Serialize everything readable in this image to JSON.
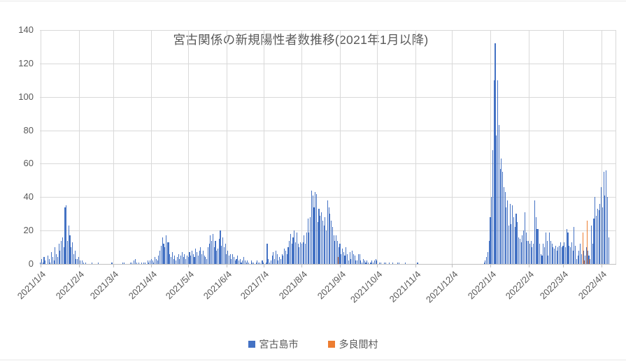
{
  "title": "宮古関係の新規陽性者数推移(2021年1月以降)",
  "legend": [
    {
      "label": "宮古島市",
      "color": "#4472C4"
    },
    {
      "label": "多良間村",
      "color": "#ED7D31"
    }
  ],
  "colors": {
    "miyakojima_blue": "#4472C4",
    "tarama_orange": "#ED7D31",
    "text_gray": "#595959",
    "gridline": "#D9D9D9",
    "axis_line": "#BFBFBF"
  },
  "y_axis": {
    "min": 0,
    "max": 140,
    "ticks": [
      0,
      20,
      40,
      60,
      80,
      100,
      120,
      140
    ]
  },
  "x_axis": {
    "ticks": [
      {
        "label": "2021/1/4",
        "day_index": 0
      },
      {
        "label": "2021/2/4",
        "day_index": 31
      },
      {
        "label": "2021/3/4",
        "day_index": 59
      },
      {
        "label": "2021/4/4",
        "day_index": 90
      },
      {
        "label": "2021/5/4",
        "day_index": 120
      },
      {
        "label": "2021/6/4",
        "day_index": 151
      },
      {
        "label": "2021/7/4",
        "day_index": 181
      },
      {
        "label": "2021/8/4",
        "day_index": 212
      },
      {
        "label": "2021/9/4",
        "day_index": 243
      },
      {
        "label": "2021/10/4",
        "day_index": 273
      },
      {
        "label": "2021/11/4",
        "day_index": 304
      },
      {
        "label": "2021/12/4",
        "day_index": 334
      },
      {
        "label": "2022/1/4",
        "day_index": 365
      },
      {
        "label": "2022/2/4",
        "day_index": 396
      },
      {
        "label": "2022/3/4",
        "day_index": 424
      },
      {
        "label": "2022/4/4",
        "day_index": 455
      }
    ]
  },
  "chart_data": {
    "type": "bar",
    "title": "宮古関係の新規陽性者数推移(2021年1月以降)",
    "x_start_date": "2021/1/4",
    "x_end_date": "2022/4/10",
    "x_frequency": "daily",
    "ylim": [
      0,
      140
    ],
    "grid": true,
    "legend_position": "bottom",
    "series": [
      {
        "name": "宮古島市",
        "color": "#4472C4",
        "values": [
          1,
          3,
          1,
          4,
          2,
          0,
          5,
          3,
          1,
          7,
          4,
          2,
          10,
          6,
          4,
          12,
          8,
          14,
          16,
          10,
          34,
          35,
          14,
          23,
          17,
          10,
          13,
          6,
          8,
          3,
          3,
          4,
          2,
          0,
          2,
          1,
          0,
          1,
          0,
          0,
          0,
          0,
          1,
          0,
          0,
          0,
          0,
          1,
          0,
          0,
          0,
          0,
          0,
          0,
          0,
          0,
          0,
          0,
          1,
          0,
          0,
          0,
          0,
          0,
          0,
          0,
          0,
          1,
          1,
          0,
          0,
          0,
          0,
          1,
          1,
          0,
          2,
          3,
          1,
          0,
          1,
          0,
          1,
          0,
          1,
          1,
          0,
          2,
          1,
          2,
          3,
          2,
          1,
          4,
          3,
          2,
          5,
          8,
          11,
          16,
          12,
          10,
          17,
          13,
          13,
          6,
          4,
          7,
          3,
          5,
          2,
          4,
          6,
          3,
          5,
          7,
          4,
          6,
          3,
          5,
          4,
          7,
          5,
          8,
          6,
          4,
          9,
          7,
          5,
          8,
          10,
          6,
          8,
          5,
          4,
          3,
          10,
          12,
          17,
          14,
          18,
          10,
          14,
          8,
          9,
          15,
          20,
          11,
          16,
          10,
          12,
          6,
          8,
          5,
          6,
          3,
          6,
          4,
          2,
          3,
          5,
          2,
          3,
          1,
          2,
          4,
          2,
          1,
          2,
          1,
          0,
          2,
          1,
          1,
          0,
          1,
          2,
          1,
          1,
          0,
          2,
          1,
          0,
          1,
          12,
          3,
          1,
          2,
          5,
          7,
          3,
          8,
          6,
          2,
          4,
          3,
          6,
          5,
          9,
          8,
          6,
          10,
          14,
          18,
          12,
          16,
          20,
          13,
          19,
          12,
          10,
          13,
          12,
          13,
          17,
          12,
          19,
          27,
          19,
          28,
          44,
          41,
          34,
          43,
          42,
          25,
          33,
          29,
          31,
          26,
          23,
          28,
          20,
          38,
          34,
          30,
          26,
          22,
          17,
          14,
          17,
          14,
          10,
          12,
          6,
          9,
          7,
          5,
          10,
          6,
          2,
          7,
          3,
          8,
          6,
          5,
          2,
          2,
          6,
          6,
          2,
          1,
          3,
          2,
          1,
          2,
          1,
          0,
          1,
          2,
          1,
          2,
          3,
          2,
          0,
          1,
          1,
          0,
          0,
          1,
          1,
          0,
          0,
          1,
          0,
          0,
          1,
          0,
          0,
          0,
          1,
          1,
          0,
          0,
          0,
          0,
          1,
          0,
          0,
          0,
          0,
          0,
          0,
          0,
          0,
          0,
          1,
          0,
          0,
          0,
          0,
          0,
          0,
          0,
          0,
          0,
          0,
          0,
          0,
          0,
          0,
          0,
          0,
          0,
          0,
          0,
          0,
          0,
          0,
          0,
          0,
          0,
          0,
          0,
          0,
          0,
          0,
          0,
          0,
          0,
          0,
          0,
          0,
          0,
          0,
          0,
          0,
          0,
          0,
          0,
          0,
          0,
          0,
          0,
          0,
          0,
          0,
          0,
          0,
          0,
          1,
          2,
          4,
          7,
          14,
          28,
          40,
          68,
          110,
          132,
          77,
          110,
          83,
          57,
          63,
          55,
          46,
          43,
          34,
          38,
          23,
          36,
          24,
          35,
          28,
          22,
          30,
          25,
          16,
          15,
          13,
          17,
          20,
          31,
          19,
          14,
          14,
          12,
          14,
          10,
          12,
          38,
          28,
          21,
          21,
          12,
          6,
          5,
          12,
          10,
          19,
          14,
          5,
          19,
          14,
          12,
          10,
          9,
          11,
          8,
          10,
          11,
          13,
          10,
          11,
          13,
          10,
          21,
          19,
          11,
          10,
          13,
          8,
          22,
          11,
          3,
          5,
          8,
          12,
          6,
          11,
          8,
          5,
          10,
          8,
          5,
          3,
          23,
          12,
          27,
          40,
          29,
          33,
          32,
          36,
          46,
          34,
          55,
          41,
          56,
          40,
          16
        ]
      },
      {
        "name": "多良間村",
        "color": "#ED7D31",
        "points": [
          {
            "date": "2021/9/2",
            "day_index": 241,
            "value": 4
          },
          {
            "date": "2022/3/20",
            "day_index": 440,
            "value": 19
          },
          {
            "date": "2022/3/21",
            "day_index": 441,
            "value": 2
          },
          {
            "date": "2022/3/23",
            "day_index": 443,
            "value": 26
          },
          {
            "date": "2022/3/25",
            "day_index": 445,
            "value": 3
          }
        ]
      }
    ]
  }
}
